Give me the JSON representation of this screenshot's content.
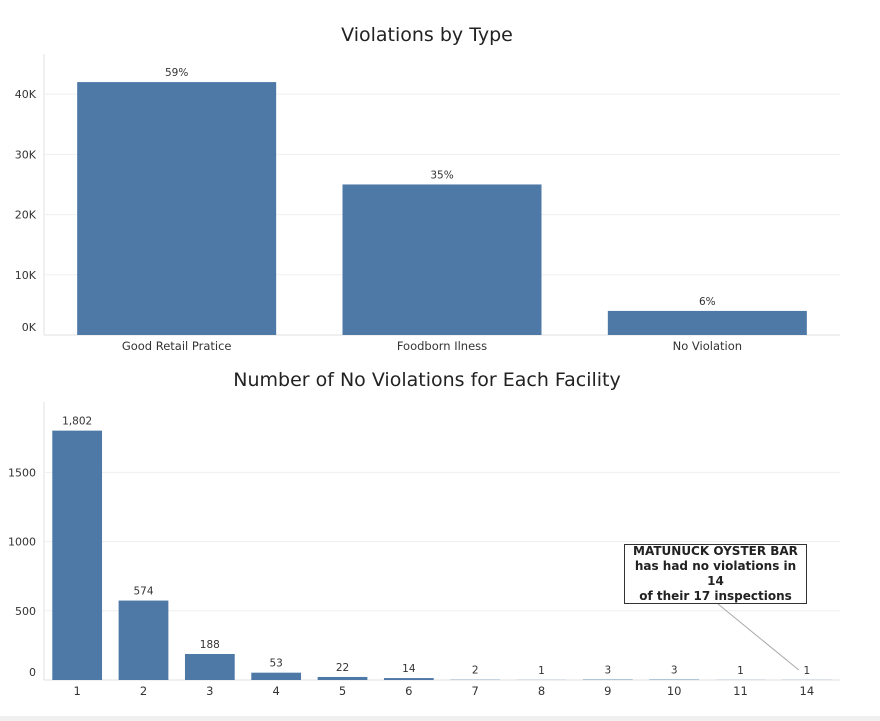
{
  "chart_data": [
    {
      "type": "bar",
      "title": "Violations by Type",
      "categories": [
        "Good Retail Pratice",
        "Foodborn Ilness",
        "No Violation"
      ],
      "values": [
        42000,
        25000,
        4000
      ],
      "data_labels": [
        "59%",
        "35%",
        "6%"
      ],
      "ylim": [
        0,
        46000
      ],
      "yticks": [
        0,
        10000,
        20000,
        30000,
        40000
      ],
      "ytick_labels": [
        "0K",
        "10K",
        "20K",
        "30K",
        "40K"
      ],
      "grid": true,
      "color": "#4e79a7"
    },
    {
      "type": "bar",
      "title": "Number of No Violations for Each Facility",
      "categories": [
        "1",
        "2",
        "3",
        "4",
        "5",
        "6",
        "7",
        "8",
        "9",
        "10",
        "11",
        "14"
      ],
      "values": [
        1802,
        574,
        188,
        53,
        22,
        14,
        2,
        1,
        3,
        3,
        1,
        1
      ],
      "data_labels": [
        "1,802",
        "574",
        "188",
        "53",
        "22",
        "14",
        "2",
        "1",
        "3",
        "3",
        "1",
        "1"
      ],
      "ylim": [
        0,
        1980
      ],
      "yticks": [
        0,
        500,
        1000,
        1500
      ],
      "ytick_labels": [
        "0",
        "500",
        "1000",
        "1500"
      ],
      "grid": true,
      "color": "#4e79a7",
      "annotation": {
        "lines": [
          "MATUNUCK OYSTER BAR",
          "has had no violations in 14",
          "of their 17 inspections"
        ],
        "points_to_category": "14"
      }
    }
  ]
}
